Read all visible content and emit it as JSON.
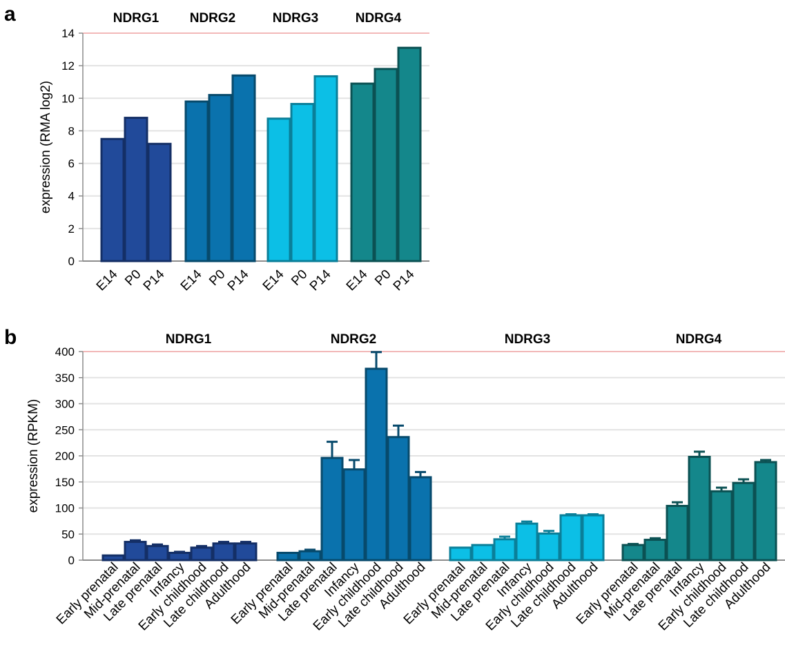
{
  "chart_data": [
    {
      "type": "bar",
      "panel": "a",
      "ylabel": "expression (RMA log2)",
      "ylim": [
        0,
        14
      ],
      "yticks": [
        0,
        2,
        4,
        6,
        8,
        10,
        12,
        14
      ],
      "grid": true,
      "groups": [
        {
          "name": "NDRG1",
          "color": "#214a9a",
          "stroke": "#142f66",
          "categories": [
            "E14",
            "P0",
            "P14"
          ],
          "values": [
            7.5,
            8.8,
            7.2
          ]
        },
        {
          "name": "NDRG2",
          "color": "#0a72ad",
          "stroke": "#074a6c",
          "categories": [
            "E14",
            "P0",
            "P14"
          ],
          "values": [
            9.8,
            10.2,
            11.4
          ]
        },
        {
          "name": "NDRG3",
          "color": "#0cbfe6",
          "stroke": "#0a7f99",
          "categories": [
            "E14",
            "P0",
            "P14"
          ],
          "values": [
            8.75,
            9.65,
            11.35
          ]
        },
        {
          "name": "NDRG4",
          "color": "#14878b",
          "stroke": "#0b5153",
          "categories": [
            "E14",
            "P0",
            "P14"
          ],
          "values": [
            10.9,
            11.8,
            13.1
          ]
        }
      ]
    },
    {
      "type": "bar",
      "panel": "b",
      "ylabel": "expression (RPKM)",
      "ylim": [
        0,
        400
      ],
      "yticks": [
        0,
        50,
        100,
        150,
        200,
        250,
        300,
        350,
        400
      ],
      "grid": true,
      "groups": [
        {
          "name": "NDRG1",
          "color": "#214a9a",
          "stroke": "#142f66",
          "categories": [
            "Early prenatal",
            "Mid-prenatal",
            "Late prenatal",
            "Infancy",
            "Early childhood",
            "Late childhood",
            "Adulthood"
          ],
          "values": [
            9,
            35,
            27,
            14,
            24,
            32,
            32
          ],
          "errors": [
            0,
            3,
            3,
            2,
            3,
            3,
            3
          ]
        },
        {
          "name": "NDRG2",
          "color": "#0a72ad",
          "stroke": "#074a6c",
          "categories": [
            "Early prenatal",
            "Mid-prenatal",
            "Late prenatal",
            "Infancy",
            "Early childhood",
            "Late childhood",
            "Adulthood"
          ],
          "values": [
            14,
            17,
            196,
            174,
            367,
            236,
            159
          ],
          "errors": [
            0,
            3,
            31,
            18,
            32,
            22,
            10
          ]
        },
        {
          "name": "NDRG3",
          "color": "#0cbfe6",
          "stroke": "#0a7f99",
          "categories": [
            "Early prenatal",
            "Mid-prenatal",
            "Late prenatal",
            "Infancy",
            "Early childhood",
            "Late childhood",
            "Adulthood"
          ],
          "values": [
            24,
            29,
            40,
            70,
            51,
            86,
            86
          ],
          "errors": [
            0,
            0,
            5,
            4,
            5,
            2,
            2
          ]
        },
        {
          "name": "NDRG4",
          "color": "#14878b",
          "stroke": "#0b5153",
          "categories": [
            "Early prenatal",
            "Mid-prenatal",
            "Late prenatal",
            "Infancy",
            "Early childhood",
            "Late childhood",
            "Adulthood"
          ],
          "values": [
            29,
            39,
            104,
            198,
            132,
            148,
            188
          ],
          "errors": [
            2,
            3,
            7,
            10,
            7,
            7,
            4
          ]
        }
      ]
    }
  ],
  "colors": {
    "grid": "#e3e3e3",
    "top_line": "#f2b8b8",
    "axis": "#8c8c8c"
  }
}
